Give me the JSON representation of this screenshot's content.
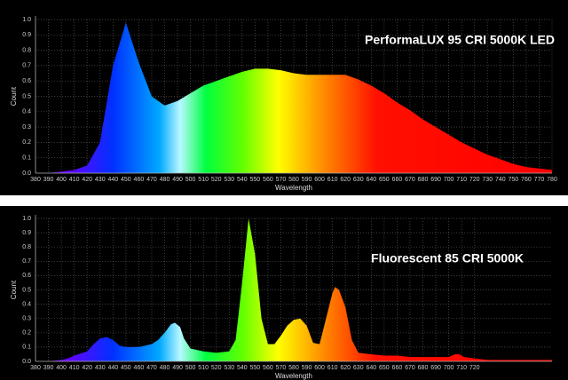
{
  "chart_data": [
    {
      "type": "area",
      "annotation": "PerformaLUX 95 CRI 5000K LED",
      "xlabel": "Wavelength",
      "ylabel": "Count",
      "x": [
        380,
        390,
        400,
        410,
        420,
        430,
        440,
        450,
        460,
        470,
        480,
        490,
        500,
        510,
        520,
        530,
        540,
        550,
        560,
        570,
        580,
        590,
        600,
        610,
        620,
        630,
        640,
        650,
        660,
        670,
        680,
        690,
        700,
        710,
        720,
        730,
        740,
        750,
        760,
        770,
        780
      ],
      "values": [
        0,
        0,
        0.01,
        0.02,
        0.05,
        0.2,
        0.7,
        0.98,
        0.72,
        0.5,
        0.44,
        0.47,
        0.52,
        0.57,
        0.6,
        0.63,
        0.66,
        0.68,
        0.68,
        0.67,
        0.65,
        0.64,
        0.64,
        0.64,
        0.64,
        0.61,
        0.57,
        0.52,
        0.46,
        0.41,
        0.35,
        0.3,
        0.25,
        0.2,
        0.16,
        0.12,
        0.09,
        0.06,
        0.04,
        0.03,
        0.02
      ],
      "xlim": [
        380,
        780
      ],
      "ylim": [
        0,
        1
      ],
      "xticks": [
        380,
        390,
        400,
        410,
        420,
        430,
        440,
        450,
        460,
        470,
        480,
        490,
        500,
        510,
        520,
        530,
        540,
        550,
        560,
        570,
        580,
        590,
        600,
        610,
        620,
        630,
        640,
        650,
        660,
        670,
        680,
        690,
        700,
        710,
        720,
        730,
        740,
        750,
        760,
        770,
        780
      ],
      "yticks": [
        {
          "value": 0,
          "label": "0.0"
        },
        0.1,
        0.2,
        0.3,
        0.4,
        0.5,
        0.6,
        0.7,
        0.8,
        0.9,
        {
          "value": 1,
          "label": "1.0"
        }
      ],
      "grid": true
    },
    {
      "type": "area",
      "annotation": "Fluorescent 85 CRI 5000K",
      "xlabel": "Wavelength",
      "ylabel": "Count",
      "x": [
        380,
        390,
        400,
        405,
        410,
        420,
        425,
        430,
        435,
        440,
        445,
        450,
        460,
        470,
        475,
        480,
        485,
        488,
        492,
        495,
        500,
        510,
        520,
        530,
        535,
        540,
        545,
        550,
        555,
        560,
        565,
        570,
        575,
        580,
        585,
        590,
        595,
        600,
        605,
        610,
        612,
        615,
        620,
        625,
        630,
        640,
        650,
        660,
        670,
        680,
        690,
        700,
        705,
        708,
        712,
        720,
        730,
        740,
        760,
        780
      ],
      "values": [
        0,
        0,
        0.01,
        0.02,
        0.04,
        0.07,
        0.12,
        0.16,
        0.17,
        0.15,
        0.11,
        0.1,
        0.1,
        0.12,
        0.15,
        0.2,
        0.26,
        0.27,
        0.24,
        0.16,
        0.09,
        0.07,
        0.06,
        0.07,
        0.15,
        0.55,
        1.0,
        0.75,
        0.3,
        0.12,
        0.12,
        0.18,
        0.25,
        0.29,
        0.3,
        0.25,
        0.13,
        0.12,
        0.3,
        0.48,
        0.52,
        0.5,
        0.38,
        0.15,
        0.06,
        0.05,
        0.04,
        0.04,
        0.03,
        0.03,
        0.03,
        0.03,
        0.05,
        0.05,
        0.03,
        0.02,
        0.01,
        0.01,
        0.01,
        0.01
      ],
      "xlim": [
        380,
        780
      ],
      "ylim": [
        0,
        1
      ],
      "xticks": [
        380,
        390,
        400,
        410,
        420,
        430,
        440,
        450,
        460,
        470,
        480,
        490,
        500,
        510,
        520,
        530,
        540,
        550,
        560,
        570,
        580,
        590,
        600,
        610,
        620,
        630,
        640,
        650,
        660,
        670,
        680,
        690,
        700,
        710,
        720
      ],
      "yticks": [
        {
          "value": 0,
          "label": "0.0"
        },
        0.1,
        0.2,
        0.3,
        0.4,
        0.5,
        0.6,
        0.7,
        0.8,
        0.9,
        {
          "value": 1,
          "label": "1.0"
        }
      ],
      "grid": true
    }
  ]
}
